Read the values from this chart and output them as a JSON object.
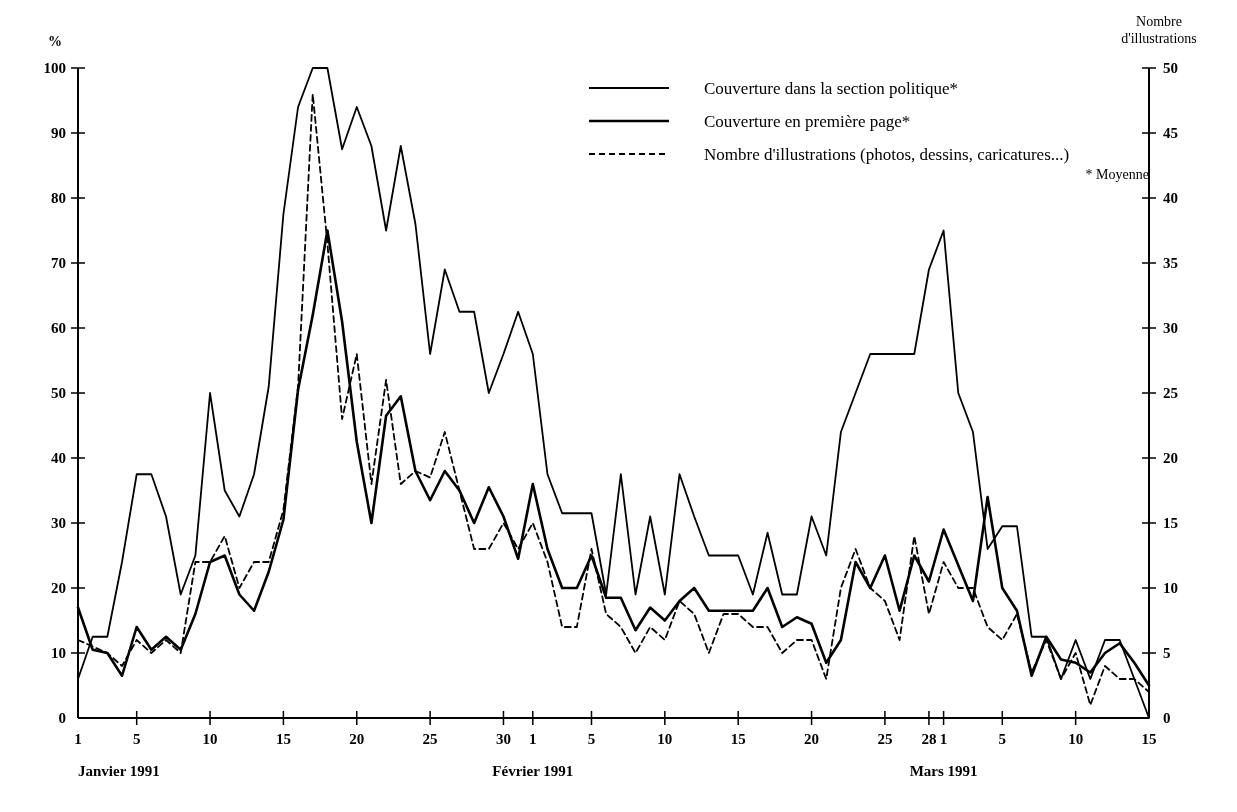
{
  "chart_data": {
    "type": "line",
    "ylabel": "%",
    "y2label": "Nombre d'illustrations",
    "x": [
      "1991-01-01",
      "1991-01-02",
      "1991-01-03",
      "1991-01-04",
      "1991-01-05",
      "1991-01-06",
      "1991-01-07",
      "1991-01-08",
      "1991-01-09",
      "1991-01-10",
      "1991-01-11",
      "1991-01-12",
      "1991-01-13",
      "1991-01-14",
      "1991-01-15",
      "1991-01-16",
      "1991-01-17",
      "1991-01-18",
      "1991-01-19",
      "1991-01-20",
      "1991-01-21",
      "1991-01-22",
      "1991-01-23",
      "1991-01-24",
      "1991-01-25",
      "1991-01-26",
      "1991-01-27",
      "1991-01-28",
      "1991-01-29",
      "1991-01-30",
      "1991-01-31",
      "1991-02-01",
      "1991-02-02",
      "1991-02-03",
      "1991-02-04",
      "1991-02-05",
      "1991-02-06",
      "1991-02-07",
      "1991-02-08",
      "1991-02-09",
      "1991-02-10",
      "1991-02-11",
      "1991-02-12",
      "1991-02-13",
      "1991-02-14",
      "1991-02-15",
      "1991-02-16",
      "1991-02-17",
      "1991-02-18",
      "1991-02-19",
      "1991-02-20",
      "1991-02-21",
      "1991-02-22",
      "1991-02-23",
      "1991-02-24",
      "1991-02-25",
      "1991-02-26",
      "1991-02-27",
      "1991-02-28",
      "1991-03-01",
      "1991-03-02",
      "1991-03-03",
      "1991-03-04",
      "1991-03-05",
      "1991-03-06",
      "1991-03-07",
      "1991-03-08",
      "1991-03-09",
      "1991-03-10",
      "1991-03-11",
      "1991-03-12",
      "1991-03-13",
      "1991-03-14",
      "1991-03-15"
    ],
    "series": [
      {
        "name": "Couverture dans la section politique*",
        "color": "#000000",
        "line_style": "solid",
        "values": [
          6,
          12.5,
          12.5,
          24,
          37.5,
          37.5,
          31,
          19,
          25,
          50,
          35,
          31,
          37.5,
          51,
          77.5,
          94,
          100,
          100,
          87.5,
          94,
          88,
          75,
          88,
          76,
          56,
          69,
          62.5,
          62.5,
          50,
          56,
          62.5,
          56,
          37.5,
          31.5,
          31.5,
          31.5,
          19,
          37.5,
          19,
          31,
          19,
          37.5,
          31,
          25,
          25,
          25,
          19,
          28.5,
          19,
          19,
          31,
          25,
          44,
          50,
          56,
          56,
          56,
          56,
          69,
          75,
          50,
          44,
          26,
          29.5,
          29.5,
          12.5,
          12.5,
          6,
          12,
          6,
          12,
          12,
          6,
          0
        ]
      },
      {
        "name": "Couverture en première page*",
        "color": "#000000",
        "line_style": "solid",
        "values": [
          17,
          10.5,
          10,
          6.5,
          14,
          10.5,
          12.5,
          10.5,
          16,
          24,
          25,
          19,
          16.5,
          22.5,
          30.5,
          50.5,
          62,
          75,
          61,
          42.5,
          30,
          46.5,
          49.5,
          38,
          33.5,
          38,
          35,
          30,
          35.5,
          31,
          24.5,
          36,
          26,
          20,
          20,
          25,
          18.5,
          18.5,
          13.5,
          17,
          15,
          18,
          20,
          16.5,
          16.5,
          16.5,
          16.5,
          20,
          14,
          15.5,
          14.5,
          8.5,
          12,
          24,
          20,
          25,
          16.5,
          25,
          21,
          29,
          23.5,
          18,
          34,
          20,
          16.5,
          6.5,
          12.5,
          9,
          8.5,
          7,
          10,
          11.5,
          8.5,
          5
        ]
      },
      {
        "name": "Nombre d'illustrations (photos, dessins, caricatures...)",
        "color": "#000000",
        "line_style": "dashed",
        "axis": "y2",
        "values": [
          6,
          5.5,
          5,
          4,
          6,
          5,
          6,
          5,
          12,
          12,
          14,
          10,
          12,
          12,
          16,
          25.5,
          48,
          36.5,
          23,
          28,
          18,
          26,
          18,
          19,
          18.5,
          22,
          17.5,
          13,
          13,
          15,
          13,
          15,
          12,
          7,
          7,
          13,
          8,
          7,
          5,
          7,
          6,
          9,
          8,
          5,
          8,
          8,
          7,
          7,
          5,
          6,
          6,
          3,
          10,
          13,
          10,
          9,
          6,
          14,
          8,
          12,
          10,
          10,
          7,
          6,
          8,
          3.5,
          6,
          3,
          5,
          1,
          4,
          3,
          3,
          2
        ]
      }
    ],
    "xlim": [
      "1991-01-01",
      "1991-03-15"
    ],
    "xticks": [
      {
        "value": "1991-01-01",
        "label": "1"
      },
      {
        "value": "1991-01-05",
        "label": "5"
      },
      {
        "value": "1991-01-10",
        "label": "10"
      },
      {
        "value": "1991-01-15",
        "label": "15"
      },
      {
        "value": "1991-01-20",
        "label": "20"
      },
      {
        "value": "1991-01-25",
        "label": "25"
      },
      {
        "value": "1991-01-30",
        "label": "30"
      },
      {
        "value": "1991-02-01",
        "label": "1"
      },
      {
        "value": "1991-02-05",
        "label": "5"
      },
      {
        "value": "1991-02-10",
        "label": "10"
      },
      {
        "value": "1991-02-15",
        "label": "15"
      },
      {
        "value": "1991-02-20",
        "label": "20"
      },
      {
        "value": "1991-02-25",
        "label": "25"
      },
      {
        "value": "1991-02-28",
        "label": "28"
      },
      {
        "value": "1991-03-01",
        "label": "1"
      },
      {
        "value": "1991-03-05",
        "label": "5"
      },
      {
        "value": "1991-03-10",
        "label": "10"
      },
      {
        "value": "1991-03-15",
        "label": "15"
      }
    ],
    "ylim": [
      0,
      100
    ],
    "yticks": [
      0,
      10,
      20,
      30,
      40,
      50,
      60,
      70,
      80,
      90,
      100
    ],
    "y2lim": [
      0,
      50
    ],
    "y2ticks": [
      0,
      5,
      10,
      15,
      20,
      25,
      30,
      35,
      40,
      45,
      50
    ],
    "annotations": [
      "Janvier 1991",
      "Février 1991",
      "Mars 1991",
      "* Moyenne"
    ],
    "legend": "top right",
    "grid": false,
    "marker": "none"
  }
}
